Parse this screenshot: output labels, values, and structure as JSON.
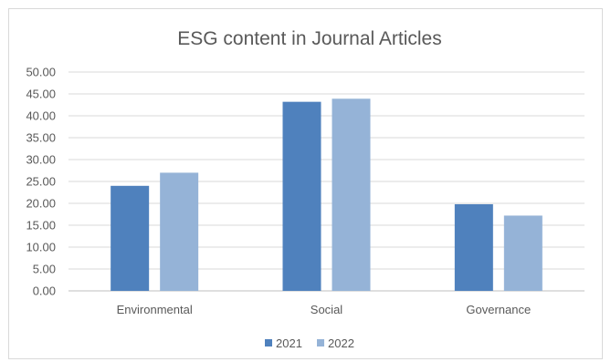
{
  "chart_data": {
    "type": "bar",
    "title": "ESG content in Journal Articles",
    "xlabel": "",
    "ylabel": "",
    "categories": [
      "Environmental",
      "Social",
      "Governance"
    ],
    "series": [
      {
        "name": "2021",
        "values": [
          24.0,
          43.2,
          19.8
        ],
        "color": "#4f81bd"
      },
      {
        "name": "2022",
        "values": [
          27.0,
          43.9,
          17.2
        ],
        "color": "#95b3d7"
      }
    ],
    "ylim": [
      0,
      50
    ],
    "y_ticks": [
      "0.00",
      "5.00",
      "10.00",
      "15.00",
      "20.00",
      "25.00",
      "30.00",
      "35.00",
      "40.00",
      "45.00",
      "50.00"
    ],
    "grid": true,
    "legend_position": "bottom"
  }
}
